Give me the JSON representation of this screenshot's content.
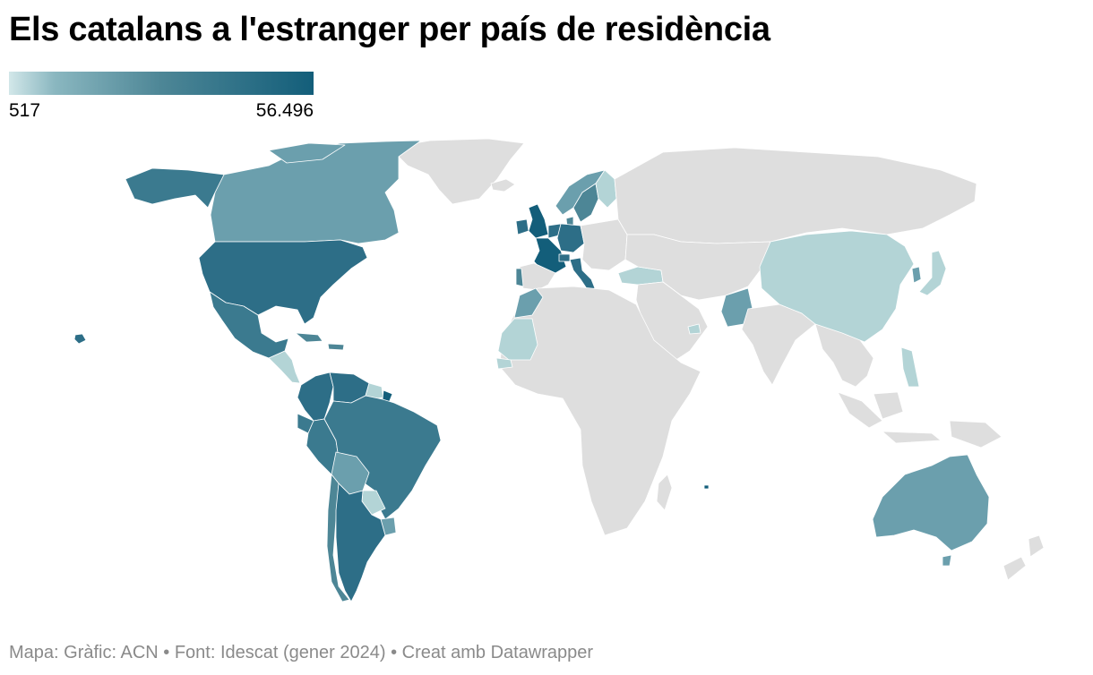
{
  "title": "Els catalans a l'estranger per país de residència",
  "legend": {
    "min_label": "517",
    "max_label": "56.496",
    "min_value": 517,
    "max_value": 56496,
    "color_low": "#d2e7e9",
    "color_high": "#135e7a"
  },
  "colors": {
    "no_data": "#dedede",
    "level_1": "#b3d4d6",
    "level_2": "#6b9fad",
    "level_3": "#4d8696",
    "level_4": "#3b7a8f",
    "level_5": "#2d6e87",
    "level_6": "#135e7a"
  },
  "footer": "Mapa: Gràfic: ACN • Font: Idescat (gener 2024) • Creat amb Datawrapper"
}
